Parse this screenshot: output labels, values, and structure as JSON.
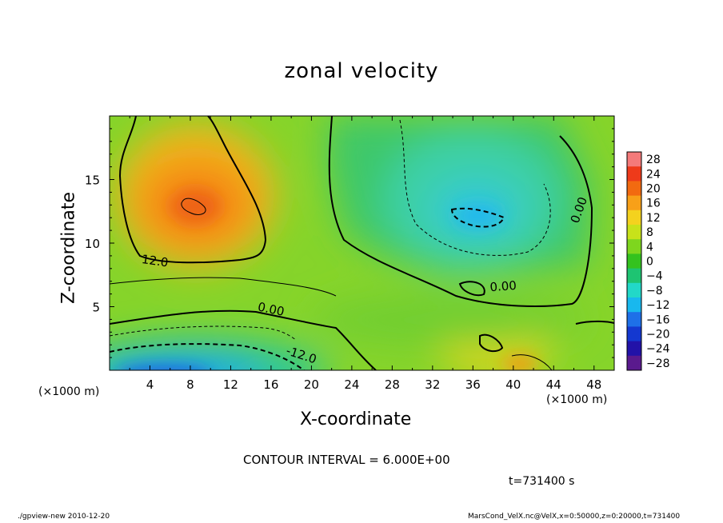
{
  "chart_data": {
    "type": "heatmap",
    "title": "zonal velocity",
    "xlabel": "X-coordinate",
    "ylabel": "Z-coordinate",
    "x_unit_label": "(×1000 m)",
    "xlim": [
      0,
      50
    ],
    "ylim": [
      0,
      20
    ],
    "x_ticks": [
      4,
      8,
      12,
      16,
      20,
      24,
      28,
      32,
      36,
      40,
      44,
      48
    ],
    "x_tick_labels": [
      "4",
      "8",
      "12",
      "16",
      "20",
      "24",
      "28",
      "32",
      "36",
      "40",
      "44",
      "48"
    ],
    "y_ticks": [
      5,
      10,
      15
    ],
    "y_tick_labels": [
      "5",
      "10",
      "15"
    ],
    "colorbar": {
      "levels": [
        28,
        24,
        20,
        16,
        12,
        8,
        4,
        0,
        -4,
        -8,
        -12,
        -16,
        -20,
        -24,
        -28
      ],
      "labels": [
        "28",
        "24",
        "20",
        "16",
        "12",
        "8",
        "4",
        "0",
        "−4",
        "−8",
        "−12",
        "−16",
        "−20",
        "−24",
        "−28"
      ],
      "colors": [
        "#f47a7a",
        "#ee3a1a",
        "#f26a10",
        "#f8a018",
        "#f4d21e",
        "#c8e21a",
        "#7ed61e",
        "#34c21e",
        "#1ec472",
        "#22d8c8",
        "#18b8ee",
        "#1e70e8",
        "#1438d0",
        "#2212a8",
        "#5a1a8e"
      ]
    },
    "contour_labels": [
      "12.0",
      "0.00",
      "0.00",
      "-12.0",
      "0.00"
    ],
    "features": [
      {
        "x": 9,
        "z": 13,
        "u": 18
      },
      {
        "x": 35,
        "z": 13,
        "u": -12
      },
      {
        "x": 7,
        "z": 0.5,
        "u": -16
      },
      {
        "x": 40,
        "z": 1,
        "u": 14
      }
    ],
    "contour_interval": "CONTOUR INTERVAL = 6.000E+00",
    "time": "t=731400 s"
  },
  "footer": {
    "left": "./gpview-new  2010-12-20",
    "right": "MarsCond_VelX.nc@VelX,x=0:50000,z=0:20000,t=731400"
  }
}
